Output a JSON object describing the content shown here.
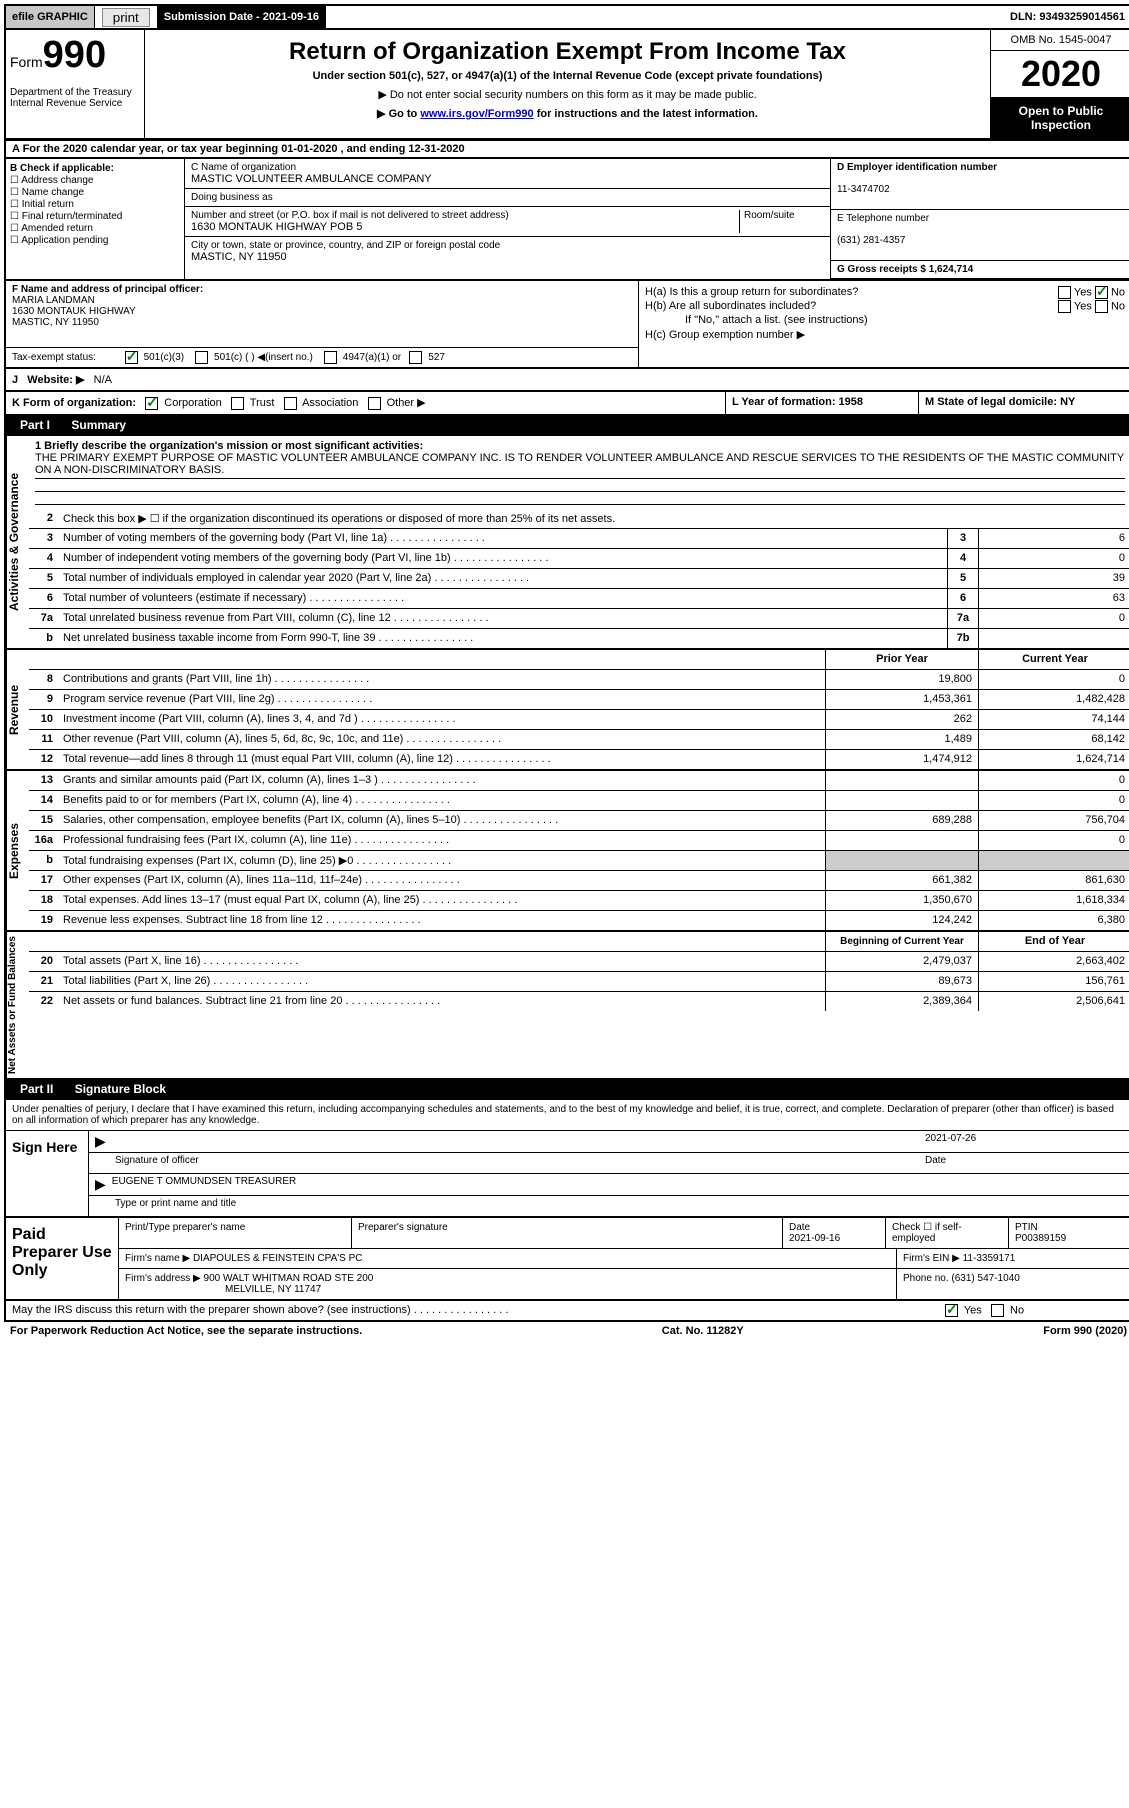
{
  "top": {
    "efile": "efile GRAPHIC",
    "print": "print",
    "sub_date_label": "Submission Date - 2021-09-16",
    "dln": "DLN: 93493259014561"
  },
  "header": {
    "form_label": "Form",
    "form_num": "990",
    "dept": "Department of the Treasury\nInternal Revenue Service",
    "title": "Return of Organization Exempt From Income Tax",
    "subtitle": "Under section 501(c), 527, or 4947(a)(1) of the Internal Revenue Code (except private foundations)",
    "note1": "▶ Do not enter social security numbers on this form as it may be made public.",
    "note2": "▶ Go to www.irs.gov/Form990 for instructions and the latest information.",
    "omb": "OMB No. 1545-0047",
    "year": "2020",
    "open": "Open to Public Inspection"
  },
  "period": {
    "text": "A For the 2020 calendar year, or tax year beginning 01-01-2020   , and ending 12-31-2020"
  },
  "entity": {
    "b_label": "B Check if applicable:",
    "checks": [
      "Address change",
      "Name change",
      "Initial return",
      "Final return/terminated",
      "Amended return",
      "Application pending"
    ],
    "c_label": "C Name of organization",
    "org_name": "MASTIC VOLUNTEER AMBULANCE COMPANY",
    "dba_label": "Doing business as",
    "addr_label": "Number and street (or P.O. box if mail is not delivered to street address)",
    "room_label": "Room/suite",
    "addr": "1630 MONTAUK HIGHWAY POB 5",
    "city_label": "City or town, state or province, country, and ZIP or foreign postal code",
    "city": "MASTIC, NY  11950",
    "d_label": "D Employer identification number",
    "ein": "11-3474702",
    "e_label": "E Telephone number",
    "phone": "(631) 281-4357",
    "g_label": "G Gross receipts $ 1,624,714"
  },
  "officer": {
    "f_label": "F  Name and address of principal officer:",
    "name": "MARIA LANDMAN",
    "addr1": "1630 MONTAUK HIGHWAY",
    "addr2": "MASTIC, NY  11950",
    "tax_exempt": "Tax-exempt status:",
    "te_501c3": "501(c)(3)",
    "te_501c": "501(c) (  ) ◀(insert no.)",
    "te_4947": "4947(a)(1) or",
    "te_527": "527",
    "ha": "H(a)  Is this a group return for subordinates?",
    "hb": "H(b)  Are all subordinates included?",
    "hb_note": "If \"No,\" attach a list. (see instructions)",
    "hc": "H(c)  Group exemption number ▶",
    "yes": "Yes",
    "no": "No"
  },
  "website": {
    "j": "J",
    "label": "Website: ▶",
    "val": "N/A"
  },
  "korg": {
    "k": "K Form of organization:",
    "corp": "Corporation",
    "trust": "Trust",
    "assoc": "Association",
    "other": "Other ▶",
    "l": "L Year of formation: 1958",
    "m": "M State of legal domicile: NY"
  },
  "part1": {
    "label": "Part I",
    "title": "Summary"
  },
  "mission": {
    "q1": "1 Briefly describe the organization's mission or most significant activities:",
    "text": "THE PRIMARY EXEMPT PURPOSE OF MASTIC VOLUNTEER AMBULANCE COMPANY INC. IS TO RENDER VOLUNTEER AMBULANCE AND RESCUE SERVICES TO THE RESIDENTS OF THE MASTIC COMMUNITY ON A NON-DISCRIMINATORY BASIS."
  },
  "governance": {
    "q2": "Check this box ▶ ☐  if the organization discontinued its operations or disposed of more than 25% of its net assets.",
    "rows": [
      {
        "n": "3",
        "d": "Number of voting members of the governing body (Part VI, line 1a)",
        "b": "3",
        "v": "6"
      },
      {
        "n": "4",
        "d": "Number of independent voting members of the governing body (Part VI, line 1b)",
        "b": "4",
        "v": "0"
      },
      {
        "n": "5",
        "d": "Total number of individuals employed in calendar year 2020 (Part V, line 2a)",
        "b": "5",
        "v": "39"
      },
      {
        "n": "6",
        "d": "Total number of volunteers (estimate if necessary)",
        "b": "6",
        "v": "63"
      },
      {
        "n": "7a",
        "d": "Total unrelated business revenue from Part VIII, column (C), line 12",
        "b": "7a",
        "v": "0"
      },
      {
        "n": "b",
        "d": "Net unrelated business taxable income from Form 990-T, line 39",
        "b": "7b",
        "v": ""
      }
    ]
  },
  "cols": {
    "prior": "Prior Year",
    "current": "Current Year"
  },
  "revenue": {
    "label": "Revenue",
    "rows": [
      {
        "n": "8",
        "d": "Contributions and grants (Part VIII, line 1h)",
        "p": "19,800",
        "c": "0"
      },
      {
        "n": "9",
        "d": "Program service revenue (Part VIII, line 2g)",
        "p": "1,453,361",
        "c": "1,482,428"
      },
      {
        "n": "10",
        "d": "Investment income (Part VIII, column (A), lines 3, 4, and 7d )",
        "p": "262",
        "c": "74,144"
      },
      {
        "n": "11",
        "d": "Other revenue (Part VIII, column (A), lines 5, 6d, 8c, 9c, 10c, and 11e)",
        "p": "1,489",
        "c": "68,142"
      },
      {
        "n": "12",
        "d": "Total revenue—add lines 8 through 11 (must equal Part VIII, column (A), line 12)",
        "p": "1,474,912",
        "c": "1,624,714"
      }
    ]
  },
  "expenses": {
    "label": "Expenses",
    "rows": [
      {
        "n": "13",
        "d": "Grants and similar amounts paid (Part IX, column (A), lines 1–3 )",
        "p": "",
        "c": "0"
      },
      {
        "n": "14",
        "d": "Benefits paid to or for members (Part IX, column (A), line 4)",
        "p": "",
        "c": "0"
      },
      {
        "n": "15",
        "d": "Salaries, other compensation, employee benefits (Part IX, column (A), lines 5–10)",
        "p": "689,288",
        "c": "756,704"
      },
      {
        "n": "16a",
        "d": "Professional fundraising fees (Part IX, column (A), line 11e)",
        "p": "",
        "c": "0"
      },
      {
        "n": "b",
        "d": "Total fundraising expenses (Part IX, column (D), line 25) ▶0",
        "p": "shade",
        "c": "shade"
      },
      {
        "n": "17",
        "d": "Other expenses (Part IX, column (A), lines 11a–11d, 11f–24e)",
        "p": "661,382",
        "c": "861,630"
      },
      {
        "n": "18",
        "d": "Total expenses. Add lines 13–17 (must equal Part IX, column (A), line 25)",
        "p": "1,350,670",
        "c": "1,618,334"
      },
      {
        "n": "19",
        "d": "Revenue less expenses. Subtract line 18 from line 12",
        "p": "124,242",
        "c": "6,380"
      }
    ]
  },
  "netassets": {
    "label": "Net Assets or Fund Balances",
    "hdr_p": "Beginning of Current Year",
    "hdr_c": "End of Year",
    "rows": [
      {
        "n": "20",
        "d": "Total assets (Part X, line 16)",
        "p": "2,479,037",
        "c": "2,663,402"
      },
      {
        "n": "21",
        "d": "Total liabilities (Part X, line 26)",
        "p": "89,673",
        "c": "156,761"
      },
      {
        "n": "22",
        "d": "Net assets or fund balances. Subtract line 21 from line 20",
        "p": "2,389,364",
        "c": "2,506,641"
      }
    ]
  },
  "part2": {
    "label": "Part II",
    "title": "Signature Block"
  },
  "sig": {
    "decl": "Under penalties of perjury, I declare that I have examined this return, including accompanying schedules and statements, and to the best of my knowledge and belief, it is true, correct, and complete. Declaration of preparer (other than officer) is based on all information of which preparer has any knowledge.",
    "sign_here": "Sign Here",
    "sig_officer": "Signature of officer",
    "date_label": "Date",
    "date_val": "2021-07-26",
    "name": "EUGENE T OMMUNDSEN  TREASURER",
    "type_label": "Type or print name and title"
  },
  "prep": {
    "label": "Paid Preparer Use Only",
    "h1": "Print/Type preparer's name",
    "h2": "Preparer's signature",
    "h3": "Date",
    "h3v": "2021-09-16",
    "h4": "Check ☐  if self-employed",
    "h5": "PTIN",
    "h5v": "P00389159",
    "firm_label": "Firm's name      ▶",
    "firm": "DIAPOULES & FEINSTEIN CPA'S PC",
    "ein_label": "Firm's EIN ▶",
    "ein": "11-3359171",
    "addr_label": "Firm's address  ▶",
    "addr1": "900 WALT WHITMAN ROAD STE 200",
    "addr2": "MELVILLE, NY  11747",
    "phone_label": "Phone no.",
    "phone": "(631) 547-1040"
  },
  "footer": {
    "discuss": "May the IRS discuss this return with the preparer shown above? (see instructions)",
    "yes": "Yes",
    "no": "No",
    "paperwork": "For Paperwork Reduction Act Notice, see the separate instructions.",
    "cat": "Cat. No. 11282Y",
    "form": "Form 990 (2020)"
  }
}
